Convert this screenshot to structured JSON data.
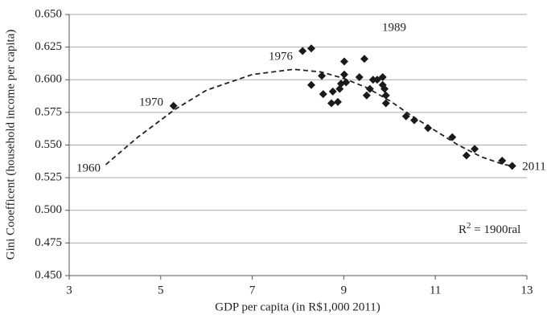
{
  "chart_data": {
    "type": "scatter",
    "x_label": "GDP per capita (in R$1,000 2011)",
    "y_label": "Gini Cooefficent (household income per capita)",
    "xlim": [
      3,
      13
    ],
    "xticks": [
      3,
      5,
      7,
      9,
      11,
      13
    ],
    "ylim": [
      0.45,
      0.65
    ],
    "yticks": [
      {
        "value": 0.45,
        "label": "0.450"
      },
      0.475,
      {
        "value": 0.5,
        "label": "0.500"
      },
      0.525,
      {
        "value": 0.55,
        "label": "0.550"
      },
      0.575,
      {
        "value": 0.6,
        "label": "0.600"
      },
      0.625,
      {
        "value": 0.65,
        "label": "0.650"
      }
    ],
    "grid": true,
    "color": "#1a1a1a",
    "x": [
      5.28,
      8.1,
      8.29,
      8.29,
      8.52,
      8.55,
      8.76,
      8.73,
      8.87,
      8.91,
      8.94,
      9.01,
      9.01,
      9.05,
      9.34,
      9.45,
      9.5,
      9.57,
      9.64,
      9.73,
      9.85,
      9.85,
      9.89,
      9.92,
      9.92,
      10.36,
      10.54,
      10.84,
      11.37,
      11.68,
      11.86,
      12.46,
      12.68
    ],
    "values": [
      0.58,
      0.622,
      0.624,
      0.596,
      0.603,
      0.589,
      0.591,
      0.582,
      0.583,
      0.593,
      0.597,
      0.614,
      0.604,
      0.598,
      0.602,
      0.616,
      0.588,
      0.593,
      0.6,
      0.6,
      0.602,
      0.596,
      0.593,
      0.588,
      0.582,
      0.572,
      0.569,
      0.563,
      0.556,
      0.542,
      0.547,
      0.538,
      0.534
    ],
    "trend": {
      "x": [
        3.8,
        4.5,
        5.3,
        6,
        7,
        7.9,
        8.5,
        9,
        9.5,
        10,
        10.5,
        11,
        11.5,
        12,
        12.5,
        12.7
      ],
      "values": [
        0.535,
        0.556,
        0.577,
        0.592,
        0.604,
        0.608,
        0.606,
        0.601,
        0.594,
        0.584,
        0.572,
        0.561,
        0.55,
        0.541,
        0.535,
        0.534
      ]
    },
    "annotations": [
      "1960",
      "1970",
      "1976",
      "1989",
      "2011"
    ],
    "r2_label": {
      "base": "R",
      "sup": "2",
      "rest": " = 1900ral"
    }
  }
}
